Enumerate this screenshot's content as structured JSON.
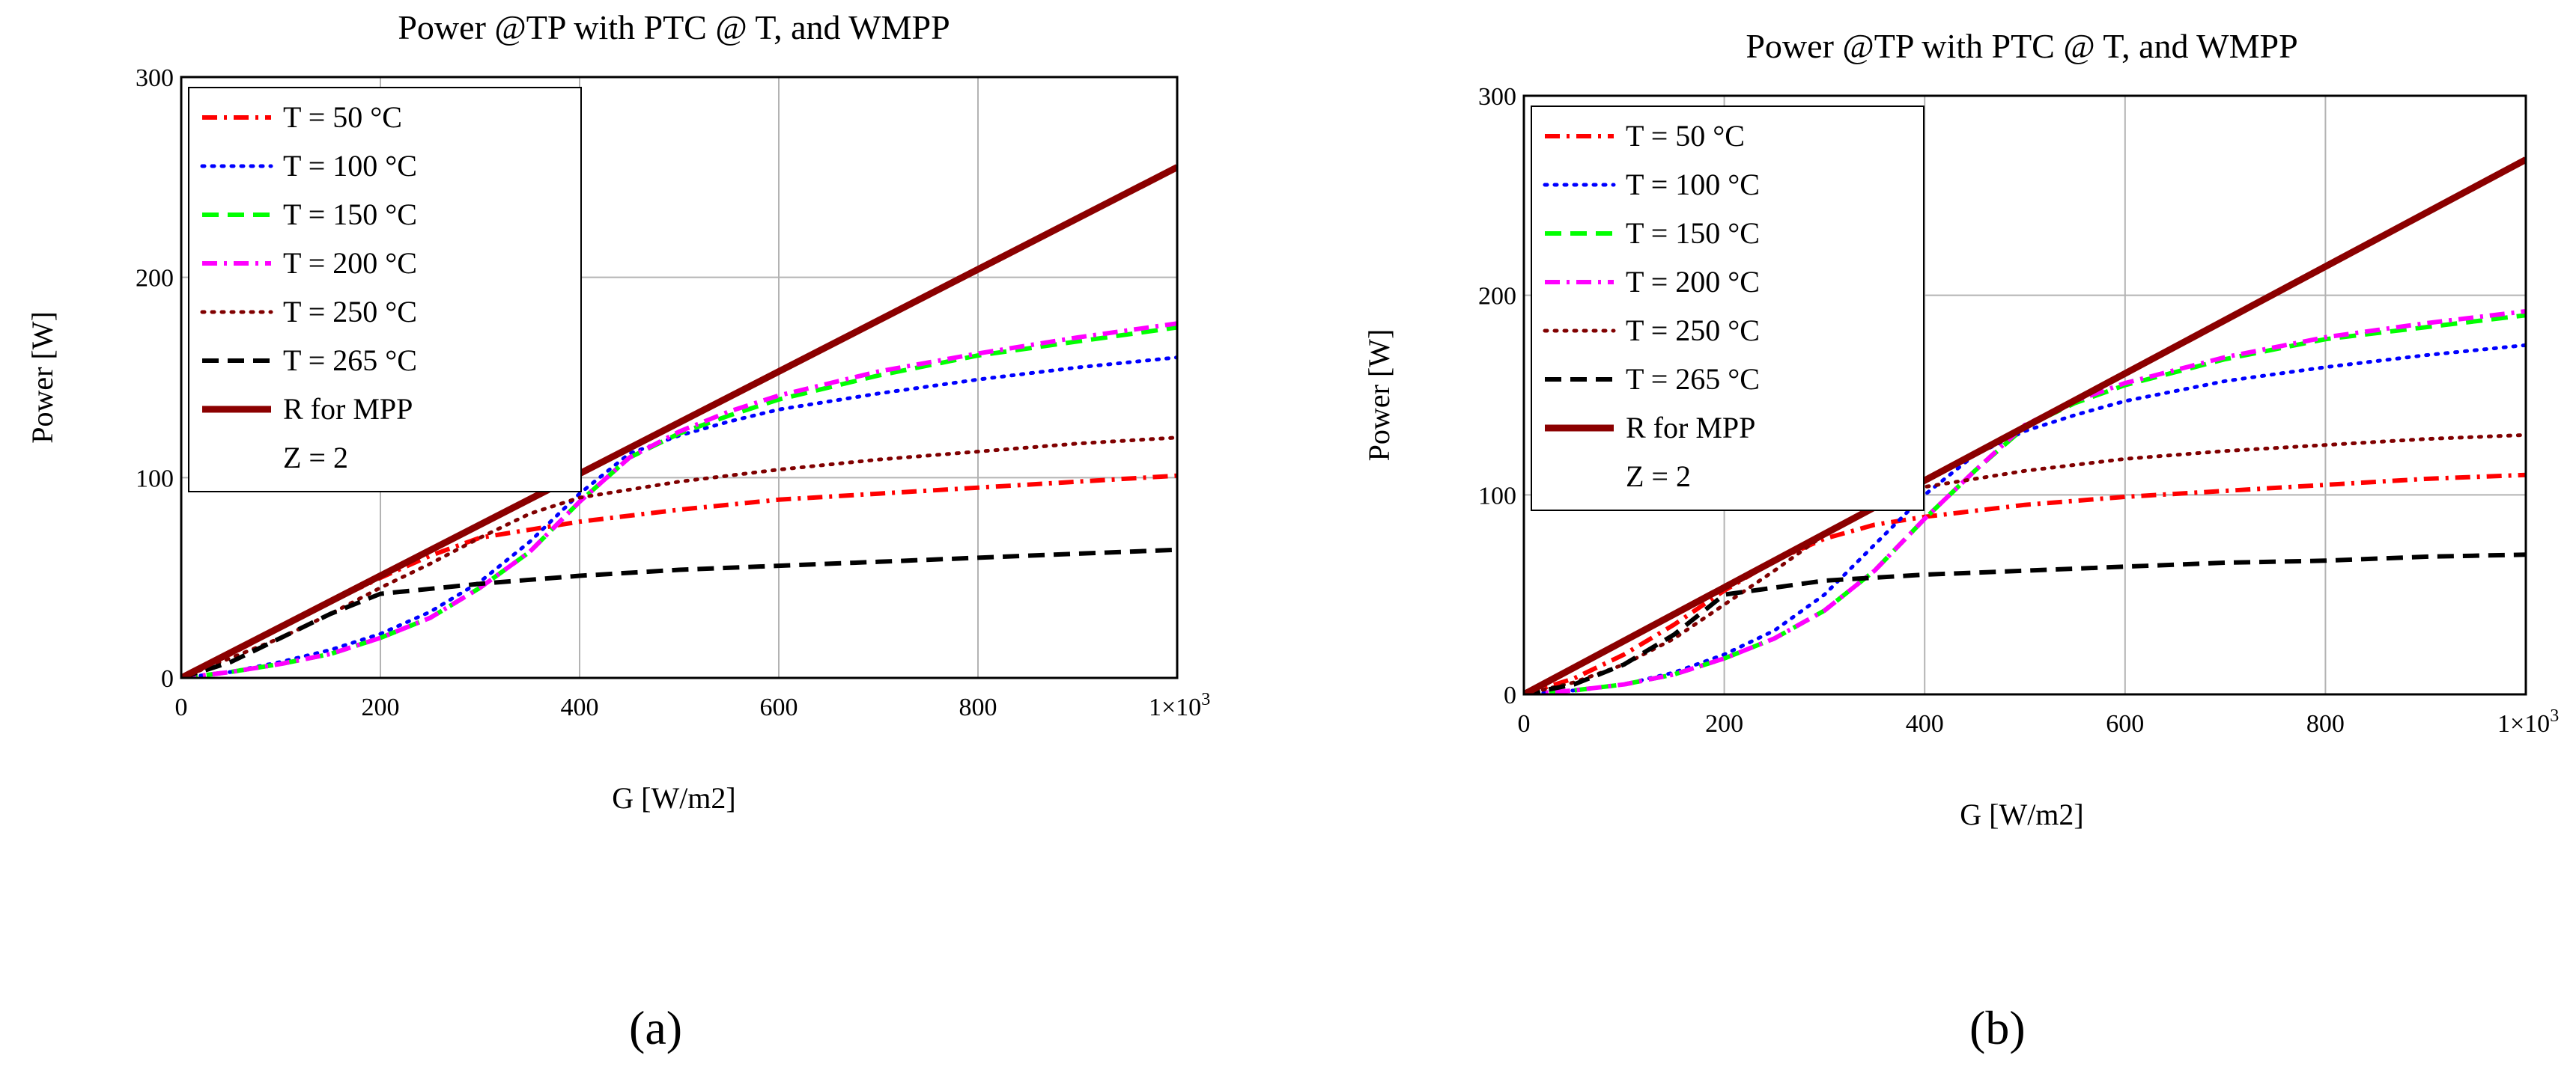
{
  "chart_data": [
    {
      "type": "line",
      "panel": "a",
      "title": "Power @TP with PTC @ T, and WMPP",
      "xlabel": "G [W/m2]",
      "ylabel": "Power [W]",
      "xlim": [
        0,
        1000
      ],
      "ylim": [
        0,
        300
      ],
      "x_ticks": [
        "0",
        "200",
        "400",
        "600",
        "800"
      ],
      "x_last_tick": {
        "base": "1×10",
        "exp": "3"
      },
      "y_ticks": [
        "0",
        "100",
        "200",
        "300"
      ],
      "grid": true,
      "legend_position": "top-left",
      "legend_note": "Z = 2",
      "series": [
        {
          "name": "T = 50 °C",
          "color": "#ff0000",
          "style": "dashdot",
          "x": [
            0,
            50,
            100,
            150,
            200,
            250,
            300,
            350,
            400,
            500,
            600,
            700,
            800,
            900,
            1000
          ],
          "y": [
            0,
            12,
            25,
            38,
            50,
            61,
            70,
            74,
            78,
            84,
            89,
            92,
            95,
            98,
            101
          ]
        },
        {
          "name": "T = 100 °C",
          "color": "#0000ff",
          "style": "dotted",
          "x": [
            0,
            50,
            100,
            150,
            200,
            250,
            300,
            350,
            400,
            450,
            500,
            550,
            600,
            700,
            800,
            900,
            1000
          ],
          "y": [
            0,
            3,
            8,
            14,
            22,
            33,
            48,
            68,
            92,
            112,
            121,
            128,
            134,
            142,
            149,
            155,
            160
          ]
        },
        {
          "name": "T = 150 °C",
          "color": "#00ff00",
          "style": "dashed",
          "x": [
            0,
            50,
            100,
            150,
            200,
            250,
            300,
            350,
            400,
            450,
            500,
            550,
            600,
            700,
            800,
            900,
            1000
          ],
          "y": [
            0,
            3,
            7,
            12,
            20,
            30,
            45,
            63,
            88,
            110,
            122,
            131,
            139,
            151,
            161,
            168,
            175
          ]
        },
        {
          "name": "T = 200 °C",
          "color": "#ff00ff",
          "style": "dashdot",
          "x": [
            0,
            50,
            100,
            150,
            200,
            250,
            300,
            350,
            400,
            450,
            500,
            550,
            600,
            700,
            800,
            900,
            1000
          ],
          "y": [
            0,
            3,
            7,
            12,
            20,
            30,
            45,
            63,
            88,
            110,
            123,
            133,
            141,
            153,
            162,
            170,
            177
          ]
        },
        {
          "name": "T = 250 °C",
          "color": "#800000",
          "style": "dotted",
          "x": [
            0,
            50,
            100,
            150,
            200,
            250,
            300,
            350,
            400,
            500,
            600,
            700,
            800,
            900,
            1000
          ],
          "y": [
            0,
            10,
            20,
            32,
            45,
            57,
            70,
            82,
            90,
            98,
            104,
            109,
            113,
            117,
            120
          ]
        },
        {
          "name": "T = 265 °C",
          "color": "#000000",
          "style": "dashed",
          "x": [
            0,
            50,
            100,
            150,
            200,
            300,
            400,
            500,
            600,
            700,
            800,
            900,
            1000
          ],
          "y": [
            0,
            8,
            20,
            32,
            42,
            47,
            51,
            54,
            56,
            58,
            60,
            62,
            64
          ]
        },
        {
          "name": "R for MPP",
          "color": "#8b0000",
          "style": "solid",
          "x": [
            0,
            1000
          ],
          "y": [
            0,
            255
          ]
        }
      ]
    },
    {
      "type": "line",
      "panel": "b",
      "title": "Power @TP with PTC @ T, and WMPP",
      "xlabel": "G [W/m2]",
      "ylabel": "Power [W]",
      "xlim": [
        0,
        1000
      ],
      "ylim": [
        0,
        300
      ],
      "x_ticks": [
        "0",
        "200",
        "400",
        "600",
        "800"
      ],
      "x_last_tick": {
        "base": "1×10",
        "exp": "3"
      },
      "y_ticks": [
        "0",
        "100",
        "200",
        "300"
      ],
      "grid": true,
      "legend_position": "top-left",
      "legend_note": "Z = 2",
      "series": [
        {
          "name": "T = 50 °C",
          "color": "#ff0000",
          "style": "dashdot",
          "x": [
            0,
            50,
            100,
            150,
            200,
            250,
            300,
            350,
            400,
            500,
            600,
            700,
            800,
            900,
            1000
          ],
          "y": [
            0,
            8,
            20,
            35,
            52,
            67,
            78,
            85,
            89,
            95,
            99,
            102,
            105,
            108,
            110
          ]
        },
        {
          "name": "T = 100 °C",
          "color": "#0000ff",
          "style": "dotted",
          "x": [
            0,
            50,
            100,
            150,
            200,
            250,
            300,
            350,
            400,
            450,
            500,
            550,
            600,
            700,
            800,
            900,
            1000
          ],
          "y": [
            0,
            2,
            5,
            11,
            20,
            32,
            50,
            75,
            100,
            120,
            132,
            140,
            147,
            157,
            164,
            170,
            175
          ]
        },
        {
          "name": "T = 150 °C",
          "color": "#00ff00",
          "style": "dashed",
          "x": [
            0,
            50,
            100,
            150,
            200,
            250,
            300,
            350,
            400,
            450,
            500,
            550,
            600,
            700,
            800,
            900,
            1000
          ],
          "y": [
            0,
            2,
            5,
            10,
            18,
            28,
            42,
            62,
            88,
            112,
            134,
            146,
            155,
            168,
            178,
            184,
            190
          ]
        },
        {
          "name": "T = 200 °C",
          "color": "#ff00ff",
          "style": "dashdot",
          "x": [
            0,
            50,
            100,
            150,
            200,
            250,
            300,
            350,
            400,
            450,
            500,
            550,
            600,
            700,
            800,
            900,
            1000
          ],
          "y": [
            0,
            2,
            5,
            10,
            18,
            28,
            42,
            62,
            88,
            112,
            135,
            147,
            156,
            169,
            179,
            186,
            192
          ]
        },
        {
          "name": "T = 250 °C",
          "color": "#800000",
          "style": "dotted",
          "x": [
            0,
            50,
            100,
            150,
            200,
            250,
            300,
            350,
            400,
            500,
            600,
            700,
            800,
            900,
            1000
          ],
          "y": [
            0,
            6,
            15,
            28,
            45,
            62,
            80,
            95,
            104,
            112,
            118,
            122,
            125,
            128,
            130
          ]
        },
        {
          "name": "T = 265 °C",
          "color": "#000000",
          "style": "dashed",
          "x": [
            0,
            50,
            100,
            150,
            200,
            300,
            400,
            500,
            600,
            700,
            800,
            900,
            1000
          ],
          "y": [
            0,
            5,
            15,
            30,
            50,
            57,
            60,
            62,
            64,
            66,
            67,
            69,
            70
          ]
        },
        {
          "name": "R for MPP",
          "color": "#8b0000",
          "style": "solid",
          "x": [
            0,
            1000
          ],
          "y": [
            0,
            268
          ]
        }
      ]
    }
  ],
  "panel_labels": [
    "(a)",
    "(b)"
  ]
}
